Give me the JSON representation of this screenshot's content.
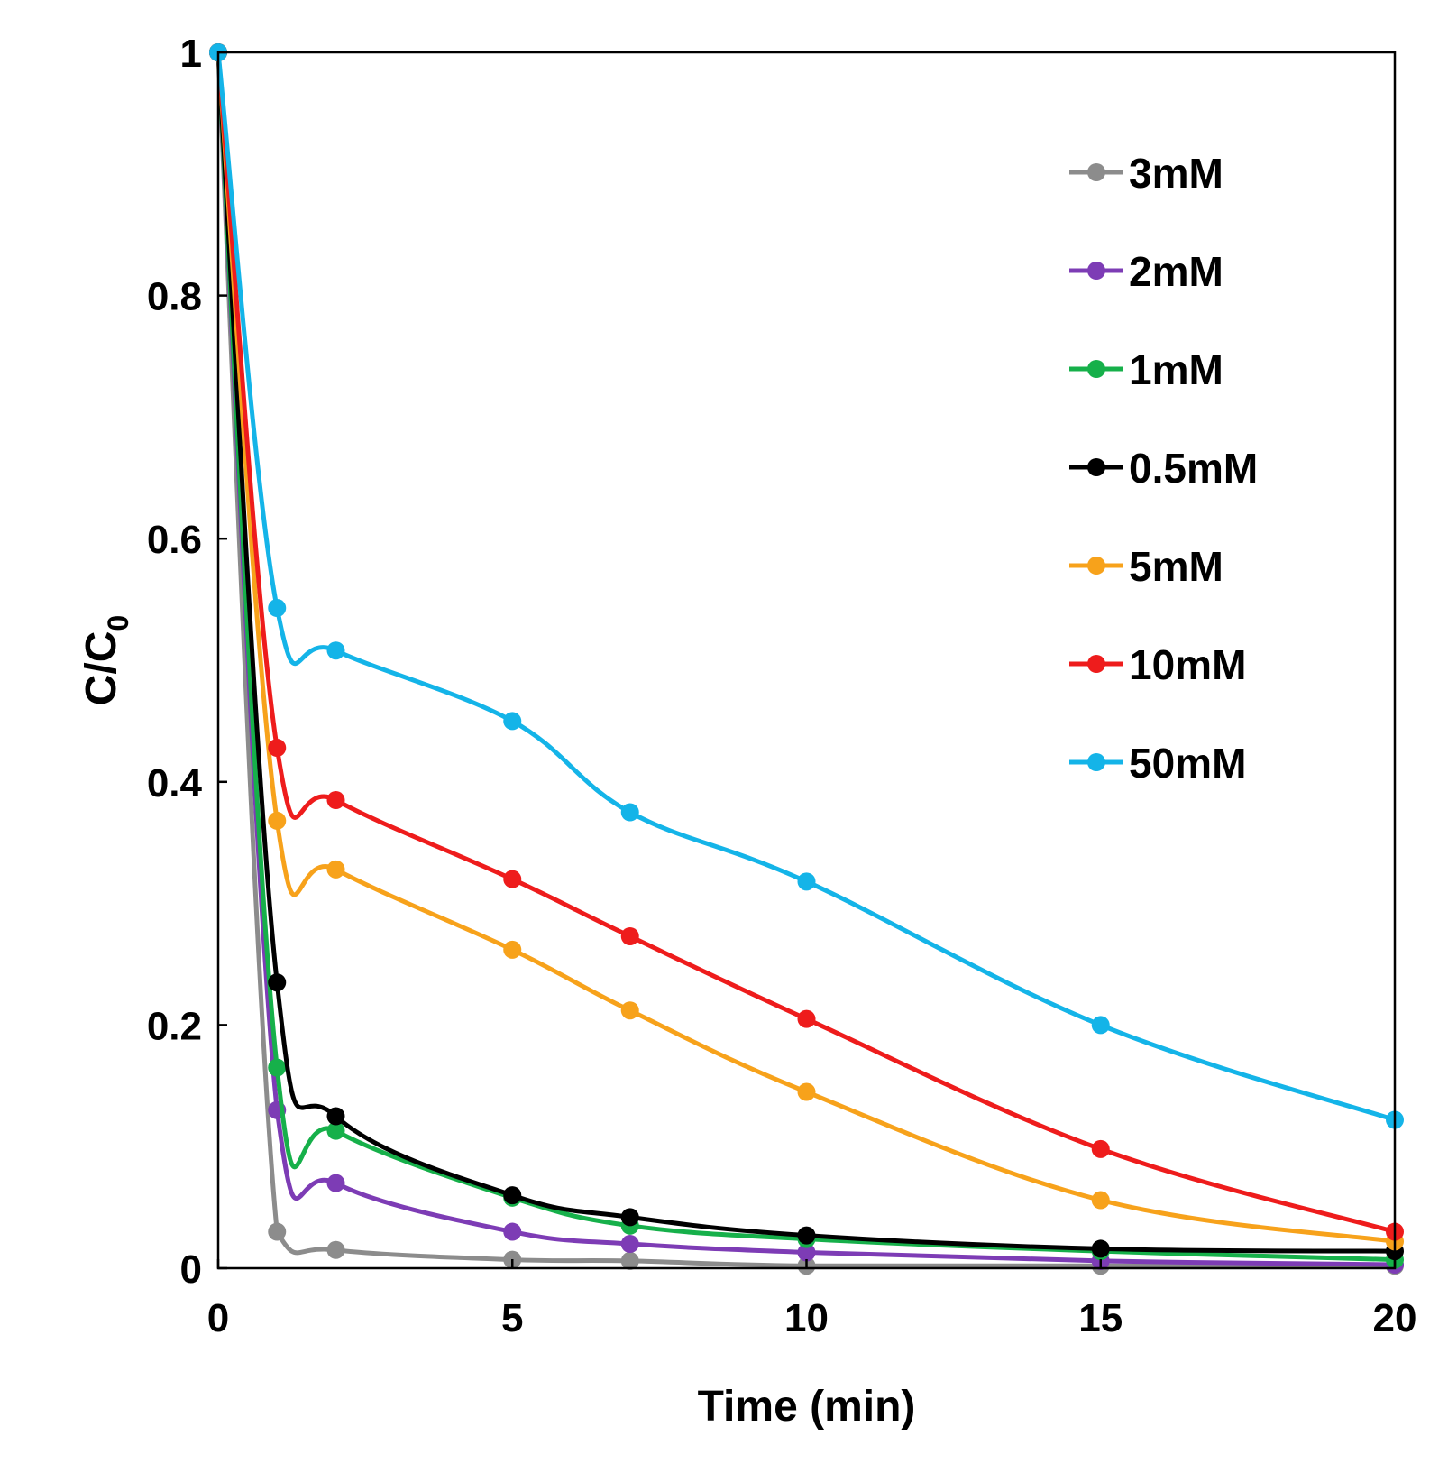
{
  "chart_data": {
    "type": "line",
    "title": "",
    "xlabel": "Time (min)",
    "ylabel": "C/C",
    "ylabel_subscript": "0",
    "xlim": [
      0,
      20
    ],
    "ylim": [
      0,
      1
    ],
    "xticks": [
      0,
      5,
      10,
      15,
      20
    ],
    "xtick_labels": [
      "0",
      "5",
      "10",
      "15",
      "20"
    ],
    "yticks": [
      0,
      0.2,
      0.4,
      0.6,
      0.8,
      1
    ],
    "ytick_labels": [
      "0",
      "0.2",
      "0.4",
      "0.6",
      "0.8",
      "1"
    ],
    "grid": false,
    "legend_position": "top-right",
    "x": [
      0,
      1,
      2,
      5,
      7,
      10,
      15,
      20
    ],
    "series": [
      {
        "name": "3mM",
        "color": "#8c8c8c",
        "values": [
          1,
          0.03,
          0.015,
          0.007,
          0.006,
          0.002,
          0.002,
          0.002
        ]
      },
      {
        "name": "2mM",
        "color": "#7d3cb5",
        "values": [
          1,
          0.13,
          0.07,
          0.03,
          0.02,
          0.013,
          0.006,
          0.003
        ]
      },
      {
        "name": "1mM",
        "color": "#16b04a",
        "values": [
          1,
          0.165,
          0.113,
          0.058,
          0.035,
          0.024,
          0.014,
          0.007
        ]
      },
      {
        "name": "0.5mM",
        "color": "#000000",
        "values": [
          1,
          0.235,
          0.125,
          0.06,
          0.042,
          0.027,
          0.016,
          0.014
        ]
      },
      {
        "name": "5mM",
        "color": "#f7a21b",
        "values": [
          1,
          0.368,
          0.328,
          0.262,
          0.212,
          0.145,
          0.056,
          0.022
        ]
      },
      {
        "name": "10mM",
        "color": "#ee1c1c",
        "values": [
          1,
          0.428,
          0.385,
          0.32,
          0.273,
          0.205,
          0.098,
          0.03
        ]
      },
      {
        "name": "50mM",
        "color": "#14b4e8",
        "values": [
          1,
          0.543,
          0.508,
          0.45,
          0.375,
          0.318,
          0.2,
          0.122
        ]
      }
    ]
  }
}
